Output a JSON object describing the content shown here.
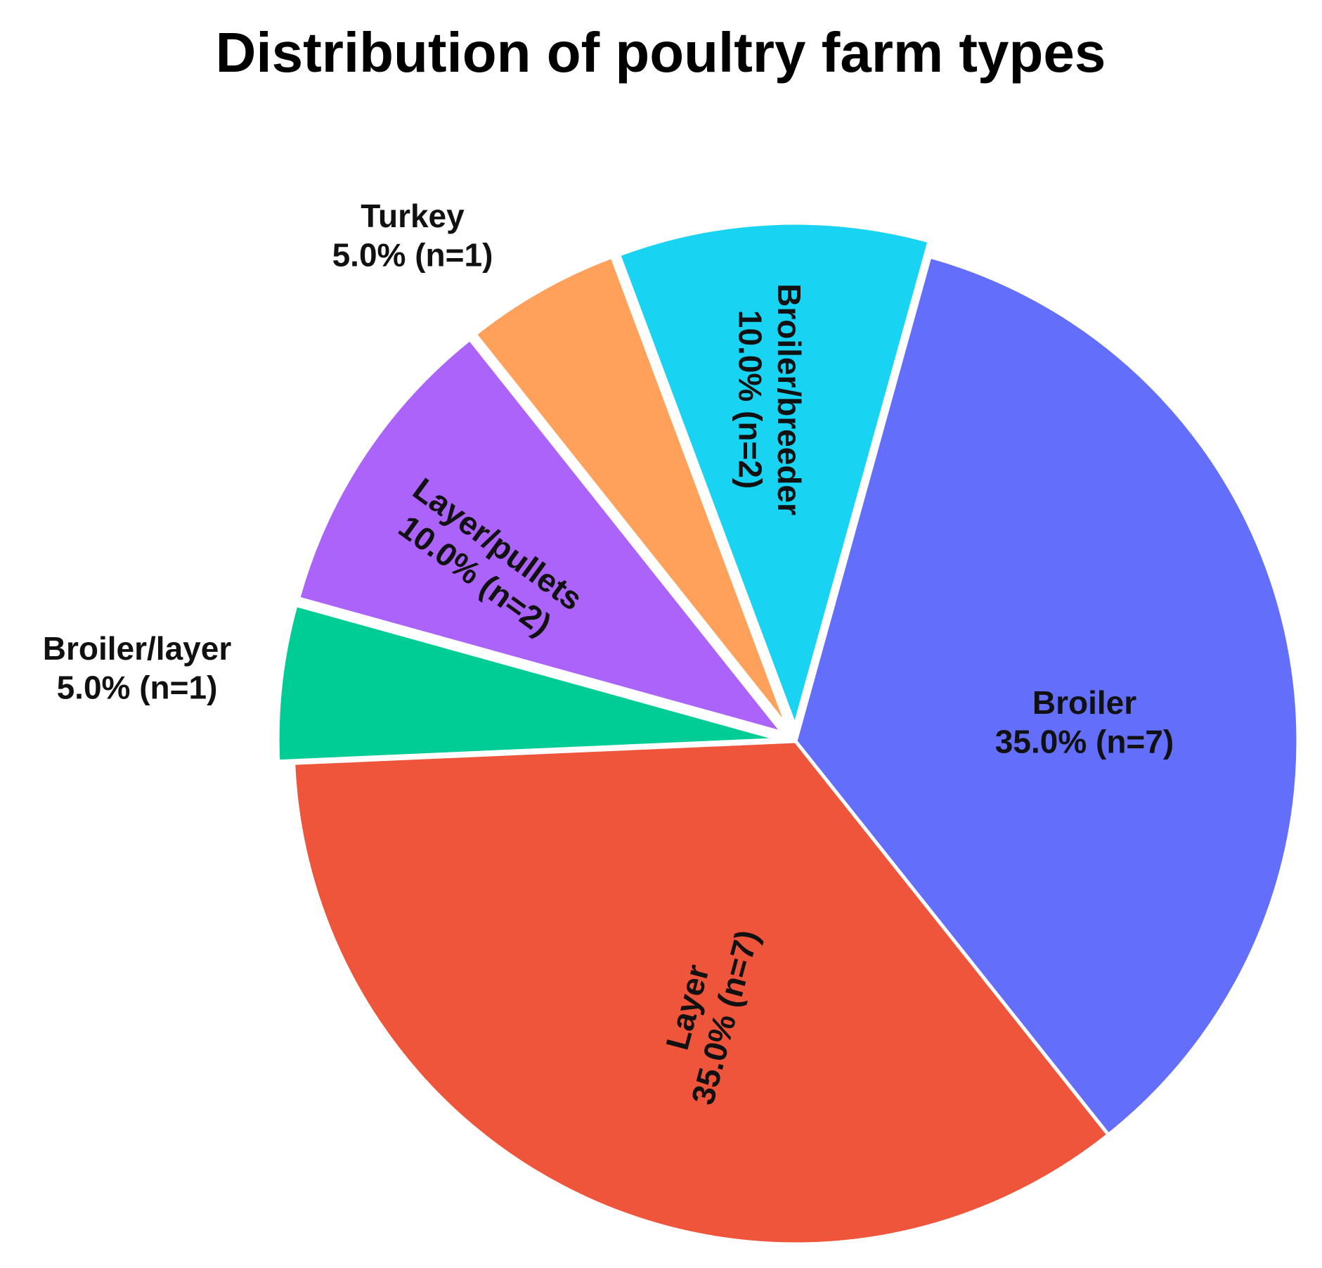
{
  "chart_data": {
    "type": "pie",
    "title": "Distribution of poultry farm types",
    "slices": [
      {
        "name": "Broiler",
        "value": 35.0,
        "n": 7,
        "label": "35.0% (n=7)",
        "color": "#636EFA",
        "label_placement": "inside-horizontal"
      },
      {
        "name": "Layer",
        "value": 35.0,
        "n": 7,
        "label": "35.0% (n=7)",
        "color": "#EF553B",
        "label_placement": "inside-radial"
      },
      {
        "name": "Broiler/layer",
        "value": 5.0,
        "n": 1,
        "label": "5.0% (n=1)",
        "color": "#00CC96",
        "label_placement": "outside",
        "pulled_out": true
      },
      {
        "name": "Layer/pullets",
        "value": 10.0,
        "n": 2,
        "label": "10.0% (n=2)",
        "color": "#AB63FA",
        "label_placement": "inside-radial",
        "pulled_out": true
      },
      {
        "name": "Turkey",
        "value": 5.0,
        "n": 1,
        "label": "5.0% (n=1)",
        "color": "#FFA15A",
        "label_placement": "outside",
        "pulled_out": true
      },
      {
        "name": "Broiler/breeder",
        "value": 10.0,
        "n": 2,
        "label": "10.0% (n=2)",
        "color": "#19D3F3",
        "label_placement": "inside-radial",
        "pulled_out": true
      }
    ],
    "direction": "clockwise",
    "start_position": "top, near 15 degrees clockwise from vertical",
    "legend": "none"
  }
}
